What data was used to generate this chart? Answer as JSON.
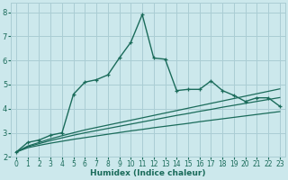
{
  "xlabel": "Humidex (Indice chaleur)",
  "bg_color": "#cce8ec",
  "grid_color": "#aacdd4",
  "line_color": "#1a6b5a",
  "xlim": [
    -0.5,
    23.5
  ],
  "ylim": [
    2.0,
    8.4
  ],
  "x_ticks": [
    0,
    1,
    2,
    3,
    4,
    5,
    6,
    7,
    8,
    9,
    10,
    11,
    12,
    13,
    14,
    15,
    16,
    17,
    18,
    19,
    20,
    21,
    22,
    23
  ],
  "y_ticks": [
    2,
    3,
    4,
    5,
    6,
    7,
    8
  ],
  "curve1_x": [
    0,
    1,
    2,
    3,
    4,
    5,
    6,
    7,
    8,
    9,
    10,
    11,
    12,
    13,
    14,
    15,
    16,
    17,
    18,
    19,
    20,
    21,
    22,
    23
  ],
  "curve1_y": [
    2.2,
    2.6,
    2.7,
    2.9,
    3.0,
    4.6,
    5.1,
    5.2,
    5.4,
    6.1,
    6.75,
    7.9,
    6.1,
    6.05,
    4.75,
    4.8,
    4.8,
    5.15,
    4.75,
    4.55,
    4.3,
    4.45,
    4.45,
    4.1
  ],
  "curve2_x": [
    0,
    1,
    2,
    3,
    4,
    5,
    6,
    7,
    8,
    9,
    10,
    11,
    12,
    13,
    14,
    15,
    16,
    17,
    18,
    19,
    20,
    21,
    22,
    23
  ],
  "curve2_y": [
    2.2,
    2.45,
    2.6,
    2.75,
    2.88,
    3.0,
    3.12,
    3.22,
    3.32,
    3.42,
    3.52,
    3.62,
    3.72,
    3.82,
    3.92,
    4.02,
    4.12,
    4.22,
    4.32,
    4.42,
    4.52,
    4.62,
    4.72,
    4.82
  ],
  "curve3_x": [
    0,
    1,
    2,
    3,
    4,
    5,
    6,
    7,
    8,
    9,
    10,
    11,
    12,
    13,
    14,
    15,
    16,
    17,
    18,
    19,
    20,
    21,
    22,
    23
  ],
  "curve3_y": [
    2.2,
    2.42,
    2.55,
    2.68,
    2.79,
    2.9,
    3.0,
    3.09,
    3.18,
    3.27,
    3.36,
    3.45,
    3.54,
    3.63,
    3.72,
    3.8,
    3.89,
    3.97,
    4.06,
    4.14,
    4.22,
    4.3,
    4.38,
    4.46
  ],
  "curve4_x": [
    0,
    1,
    2,
    3,
    4,
    5,
    6,
    7,
    8,
    9,
    10,
    11,
    12,
    13,
    14,
    15,
    16,
    17,
    18,
    19,
    20,
    21,
    22,
    23
  ],
  "curve4_y": [
    2.2,
    2.38,
    2.48,
    2.57,
    2.65,
    2.73,
    2.8,
    2.87,
    2.94,
    3.01,
    3.08,
    3.14,
    3.21,
    3.27,
    3.33,
    3.39,
    3.46,
    3.52,
    3.58,
    3.64,
    3.7,
    3.76,
    3.82,
    3.88
  ]
}
